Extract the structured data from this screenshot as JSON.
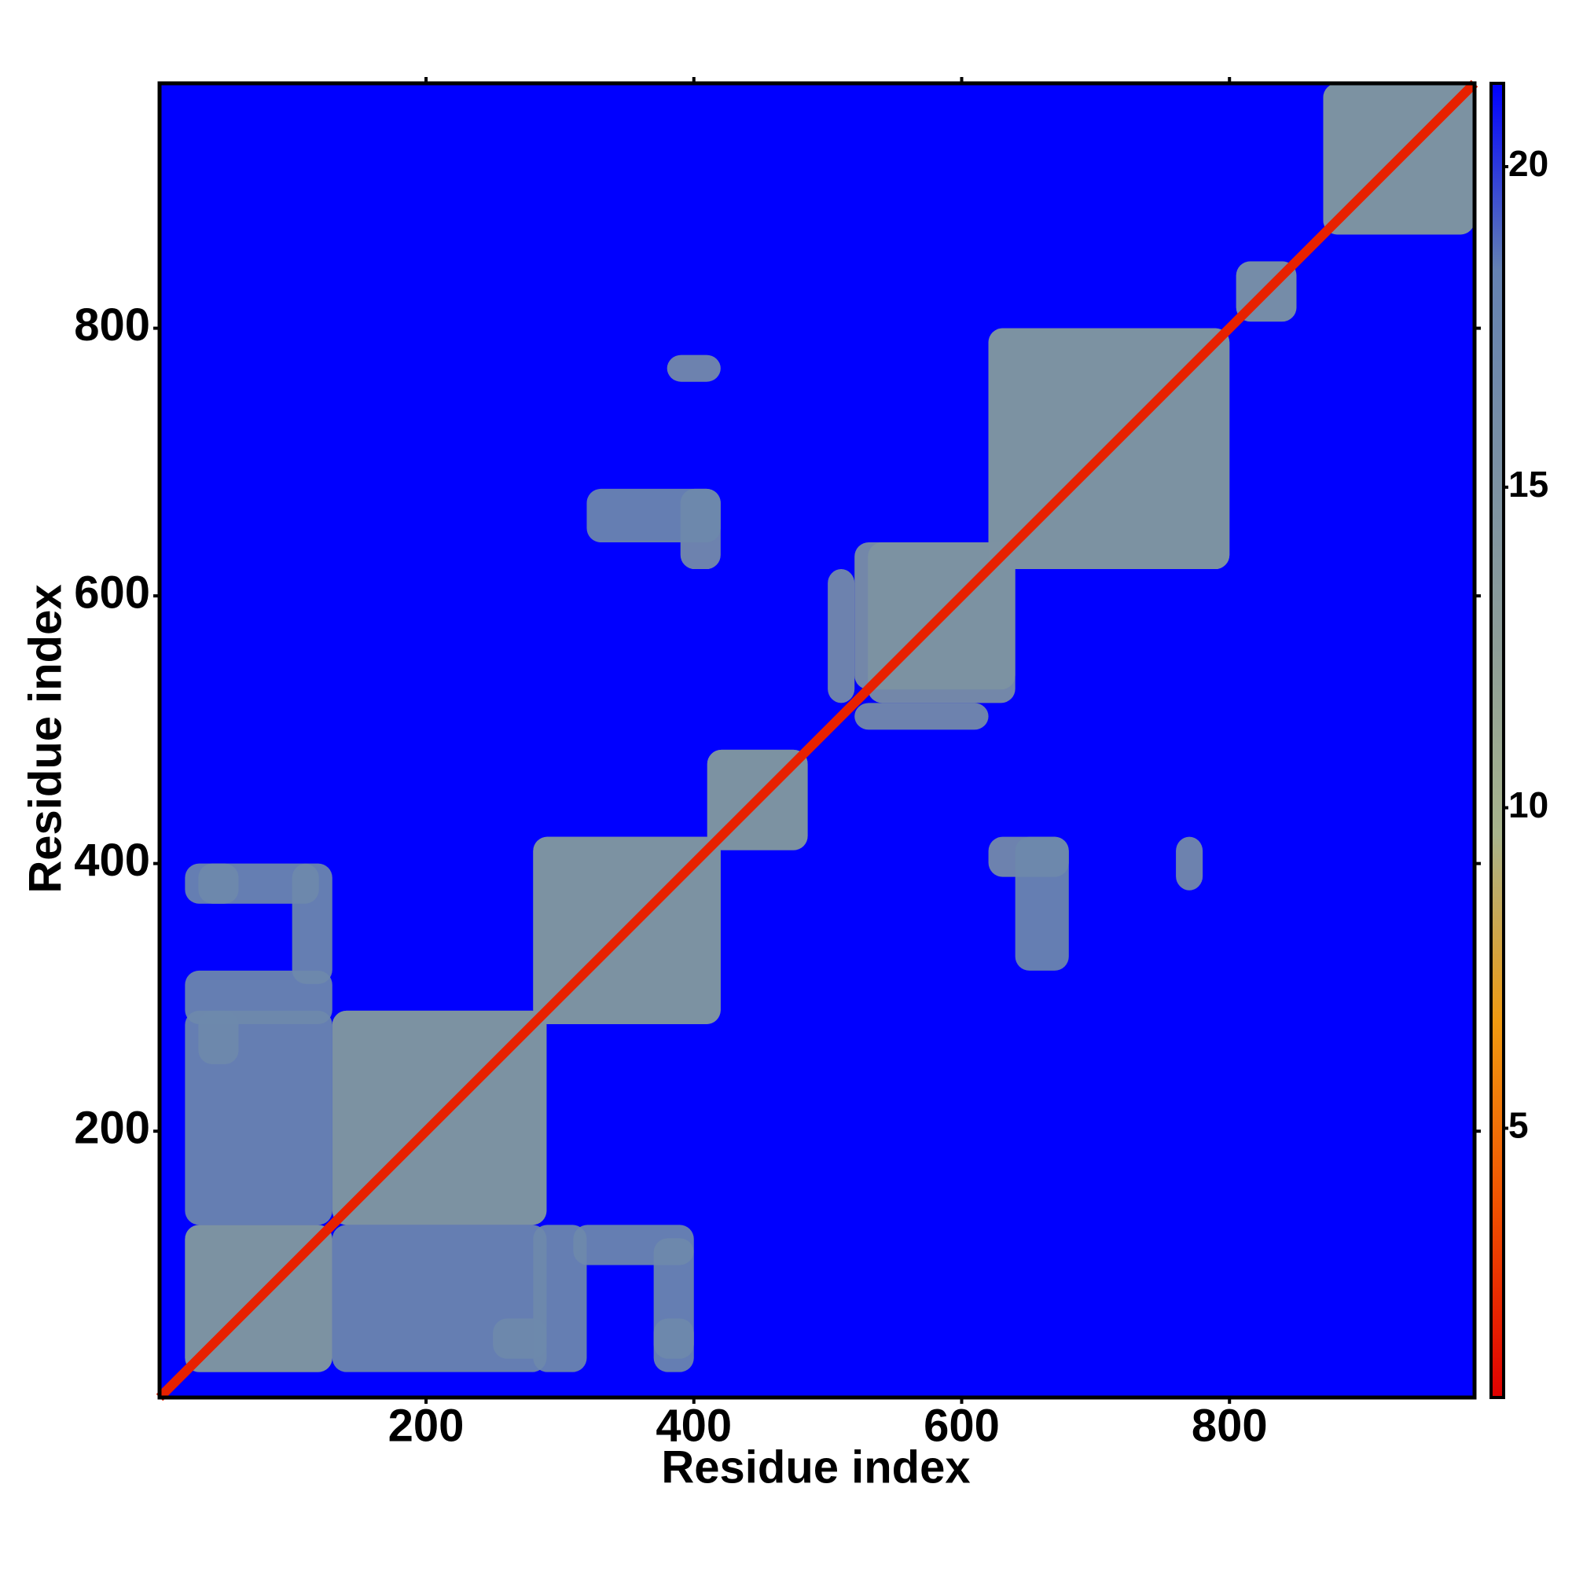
{
  "chart_data": {
    "type": "heatmap",
    "xlabel": "Residue index",
    "ylabel": "Residue index",
    "xlim": [
      1,
      983
    ],
    "ylim": [
      1,
      983
    ],
    "xticks": [
      200,
      400,
      600,
      800
    ],
    "yticks": [
      200,
      400,
      600,
      800
    ],
    "zlim": [
      0.8,
      21.3
    ],
    "zticks": [
      5,
      10,
      15,
      20
    ],
    "background_color": "#0000ff",
    "colorscale": [
      "#e00000",
      "#f05000",
      "#f09a10",
      "#a8b48c",
      "#8e9e98",
      "#7a90a4",
      "#6482b2",
      "#0000ff"
    ],
    "diagonal": 2,
    "blocks": [
      {
        "x": [
          20,
          130
        ],
        "y": [
          20,
          130
        ],
        "value": 15
      },
      {
        "x": [
          130,
          290
        ],
        "y": [
          130,
          290
        ],
        "value": 15
      },
      {
        "x": [
          280,
          420
        ],
        "y": [
          280,
          420
        ],
        "value": 15
      },
      {
        "x": [
          410,
          485
        ],
        "y": [
          410,
          485
        ],
        "value": 15
      },
      {
        "x": [
          530,
          640
        ],
        "y": [
          520,
          640
        ],
        "value": 15
      },
      {
        "x": [
          620,
          800
        ],
        "y": [
          620,
          800
        ],
        "value": 15
      },
      {
        "x": [
          805,
          850
        ],
        "y": [
          805,
          850
        ],
        "value": 16
      },
      {
        "x": [
          870,
          983
        ],
        "y": [
          870,
          983
        ],
        "value": 15
      },
      {
        "x": [
          30,
          60
        ],
        "y": [
          370,
          400
        ],
        "value": 16
      },
      {
        "x": [
          100,
          130
        ],
        "y": [
          310,
          400
        ],
        "value": 17
      },
      {
        "x": [
          30,
          60
        ],
        "y": [
          250,
          290
        ],
        "value": 16
      },
      {
        "x": [
          130,
          290
        ],
        "y": [
          20,
          130
        ],
        "value": 17
      },
      {
        "x": [
          390,
          420
        ],
        "y": [
          620,
          680
        ],
        "value": 16
      },
      {
        "x": [
          380,
          420
        ],
        "y": [
          760,
          780
        ],
        "value": 16
      },
      {
        "x": [
          280,
          320
        ],
        "y": [
          20,
          130
        ],
        "value": 17
      },
      {
        "x": [
          370,
          400
        ],
        "y": [
          20,
          120
        ],
        "value": 17
      },
      {
        "x": [
          500,
          520
        ],
        "y": [
          520,
          620
        ],
        "value": 16
      },
      {
        "x": [
          640,
          680
        ],
        "y": [
          320,
          420
        ],
        "value": 17
      }
    ]
  }
}
